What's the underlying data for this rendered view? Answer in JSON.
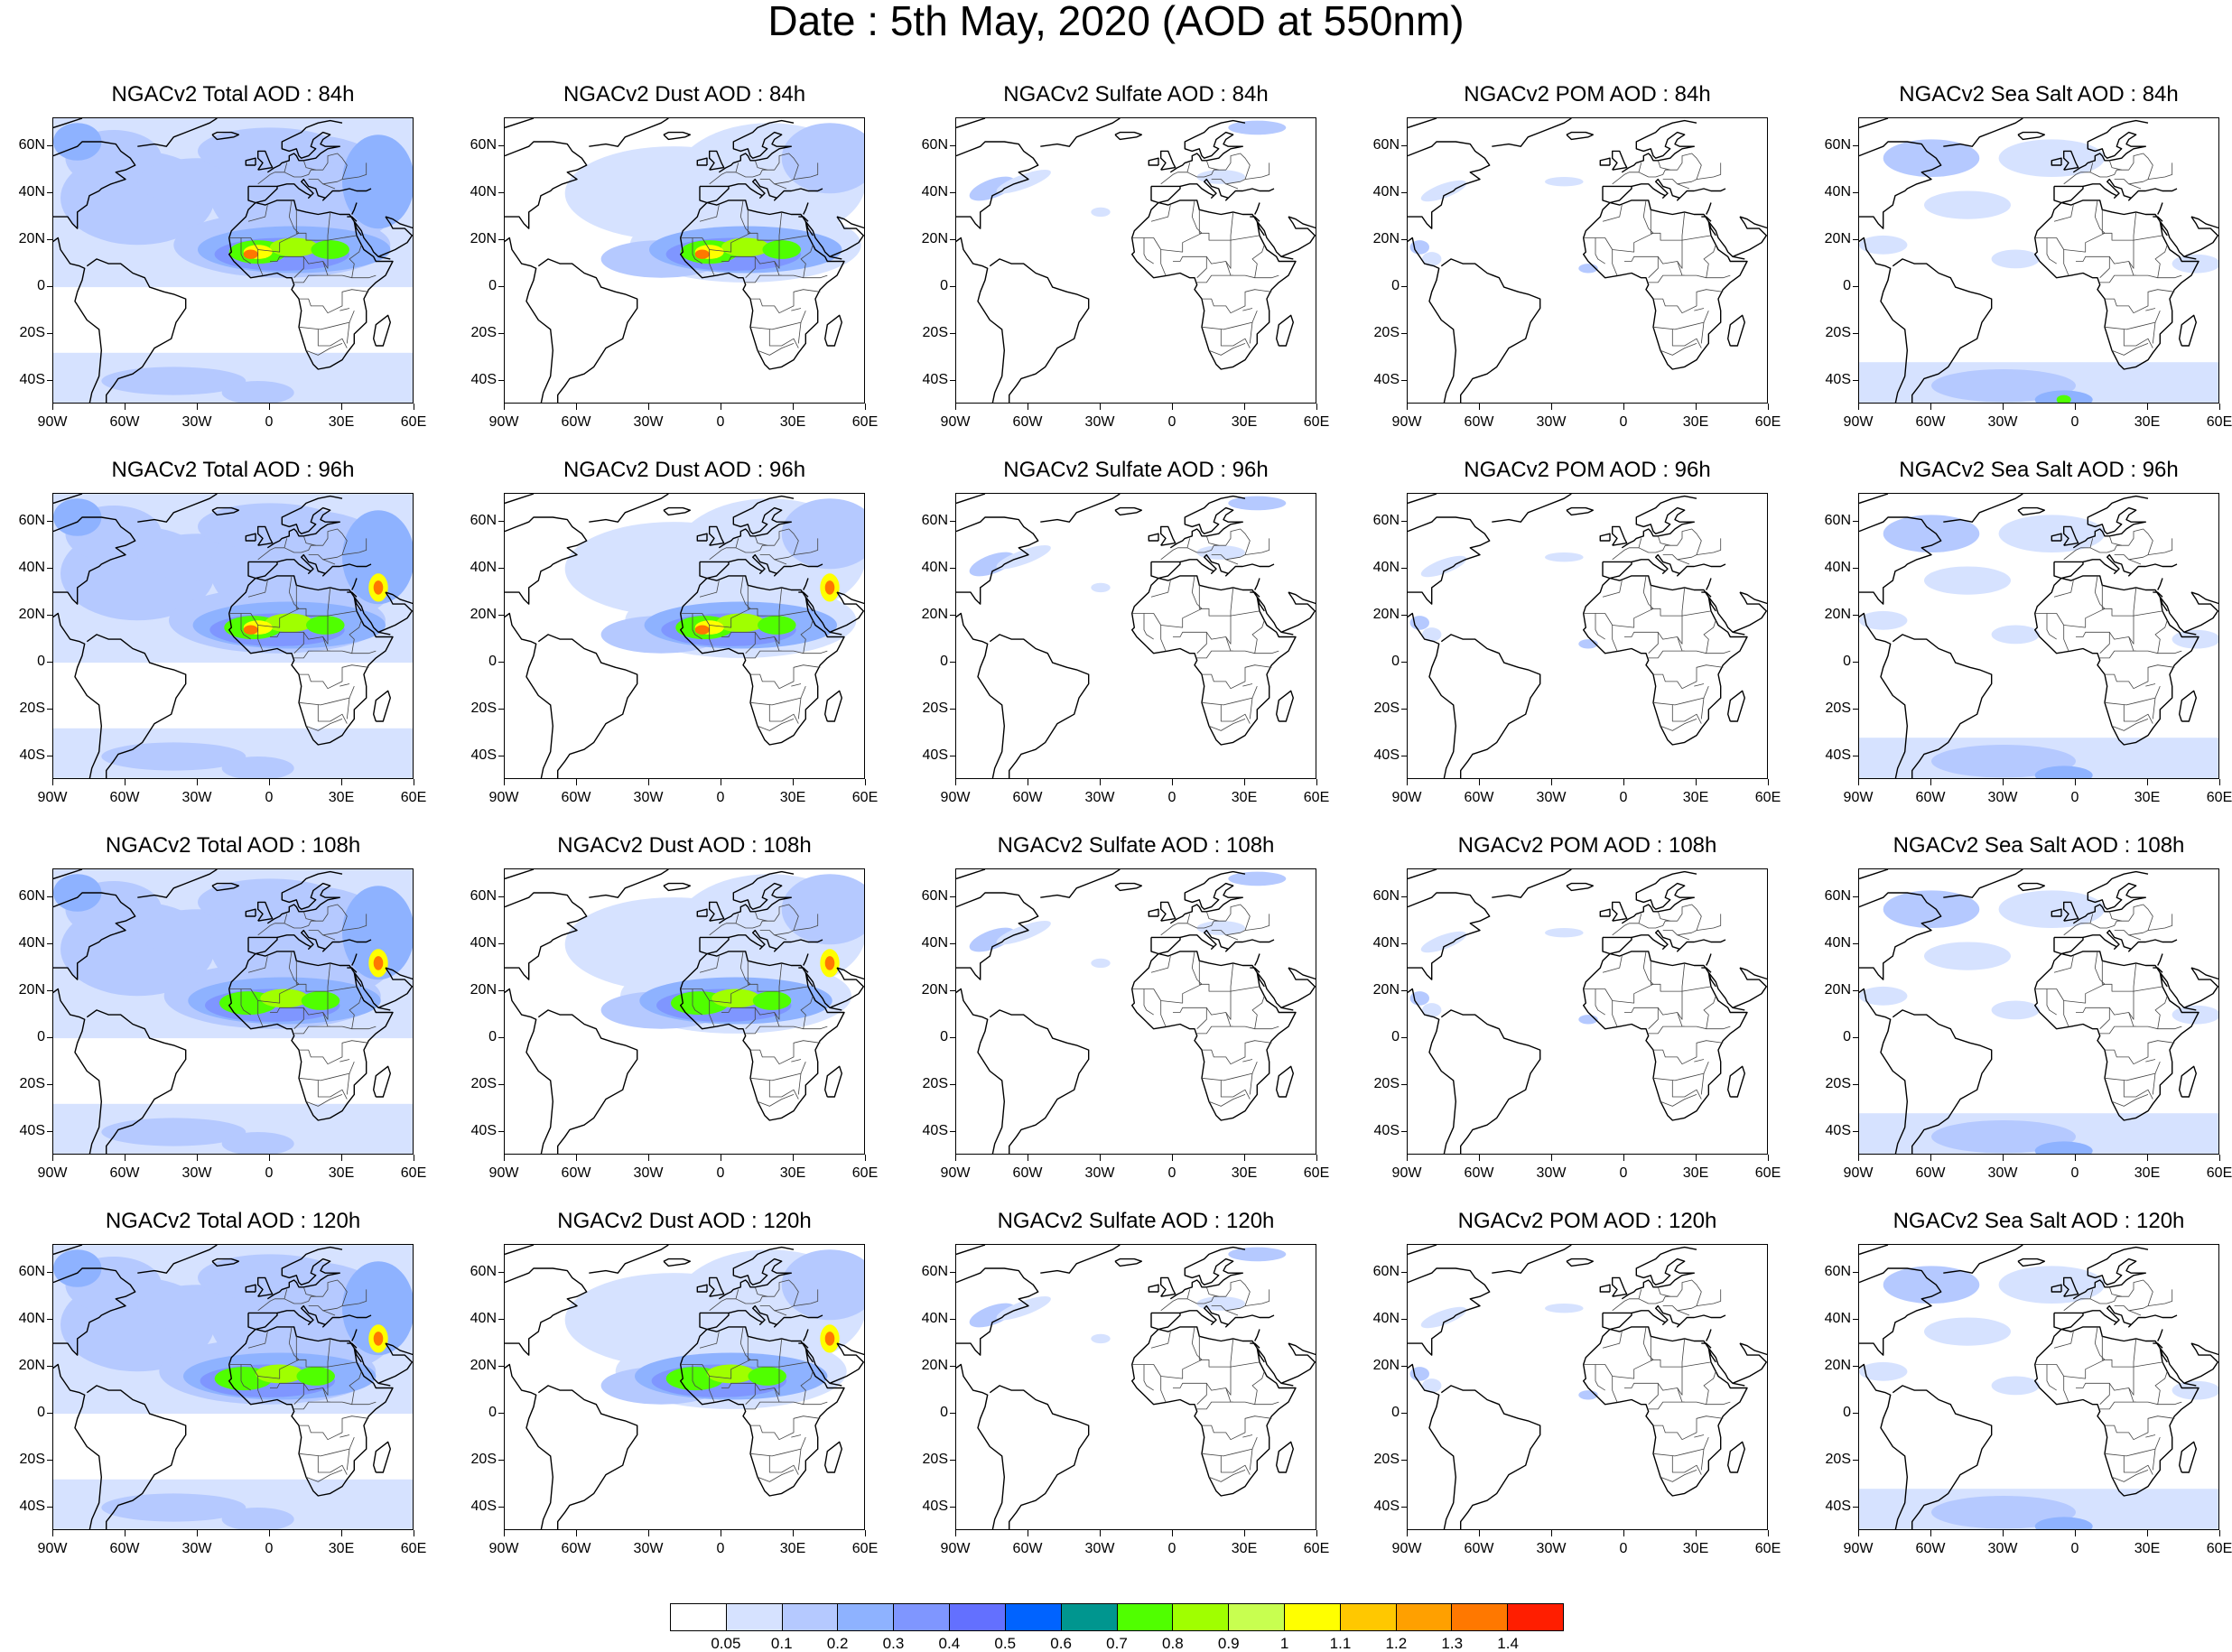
{
  "title": "Date : 5th May, 2020 (AOD at 550nm)",
  "panels": [
    [
      "NGACv2 Total AOD : 84h",
      "NGACv2 Dust AOD : 84h",
      "NGACv2 Sulfate AOD : 84h",
      "NGACv2 POM AOD : 84h",
      "NGACv2 Sea Salt AOD : 84h"
    ],
    [
      "NGACv2 Total AOD : 96h",
      "NGACv2 Dust AOD : 96h",
      "NGACv2 Sulfate AOD : 96h",
      "NGACv2 POM AOD : 96h",
      "NGACv2 Sea Salt AOD : 96h"
    ],
    [
      "NGACv2 Total AOD : 108h",
      "NGACv2 Dust AOD : 108h",
      "NGACv2 Sulfate AOD : 108h",
      "NGACv2 POM AOD : 108h",
      "NGACv2 Sea Salt AOD : 108h"
    ],
    [
      "NGACv2 Total AOD : 120h",
      "NGACv2 Dust AOD : 120h",
      "NGACv2 Sulfate AOD : 120h",
      "NGACv2 POM AOD : 120h",
      "NGACv2 Sea Salt  AOD : 120h"
    ]
  ],
  "lat_labels": [
    "60N",
    "40N",
    "20N",
    "0",
    "20S",
    "40S"
  ],
  "lon_labels": [
    "90W",
    "60W",
    "30W",
    "0",
    "30E",
    "60E"
  ],
  "colorbar": {
    "labels": [
      "0.05",
      "0.1",
      "0.2",
      "0.3",
      "0.4",
      "0.5",
      "0.6",
      "0.7",
      "0.8",
      "0.9",
      "1",
      "1.1",
      "1.2",
      "1.3",
      "1.4"
    ],
    "colors": [
      "#ffffff",
      "#d6e2ff",
      "#b5c9ff",
      "#8eb2ff",
      "#7f96ff",
      "#6370ff",
      "#0063ff",
      "#00968f",
      "#50ff00",
      "#a0ff00",
      "#c8ff50",
      "#ffff00",
      "#ffc800",
      "#ffa000",
      "#ff7800",
      "#ff1e00"
    ]
  }
}
